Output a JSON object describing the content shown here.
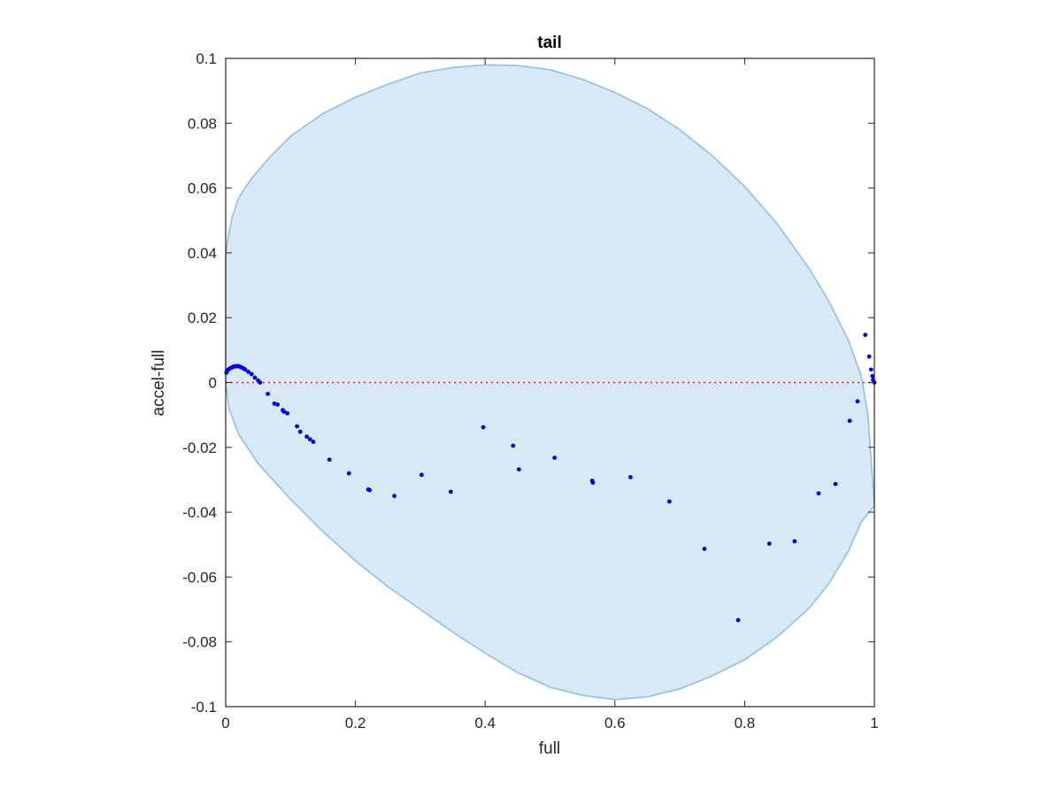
{
  "chart_data": {
    "type": "scatter",
    "title": "tail",
    "xlabel": "full",
    "ylabel": "accel-full",
    "xlim": [
      0,
      1
    ],
    "ylim": [
      -0.1,
      0.1
    ],
    "xticks": [
      0,
      0.2,
      0.4,
      0.6,
      0.8,
      1
    ],
    "xtick_labels": [
      "0",
      "0.2",
      "0.4",
      "0.6",
      "0.8",
      "1"
    ],
    "yticks": [
      0.1,
      0.08,
      0.06,
      0.04,
      0.02,
      0,
      -0.02,
      -0.04,
      -0.06,
      -0.08,
      -0.1
    ],
    "ytick_labels": [
      "0.1",
      "0.08",
      "0.06",
      "0.04",
      "0.02",
      "0",
      "-0.02",
      "-0.04",
      "-0.06",
      "-0.08",
      "-0.1"
    ],
    "grid": false,
    "colors": {
      "region_fill": "#d8e8f4",
      "region_edge": "#8ec1e3",
      "points": "#0000e6",
      "reference_line": "#e52222",
      "axes": "#262626"
    },
    "region": {
      "upper": [
        [
          0,
          0.038
        ],
        [
          0.002,
          0.043
        ],
        [
          0.01,
          0.051
        ],
        [
          0.02,
          0.057
        ],
        [
          0.04,
          0.063
        ],
        [
          0.07,
          0.07
        ],
        [
          0.1,
          0.076
        ],
        [
          0.15,
          0.083
        ],
        [
          0.2,
          0.088
        ],
        [
          0.25,
          0.092
        ],
        [
          0.3,
          0.0955
        ],
        [
          0.35,
          0.0972
        ],
        [
          0.4,
          0.098
        ],
        [
          0.45,
          0.0978
        ],
        [
          0.5,
          0.0965
        ],
        [
          0.55,
          0.0935
        ],
        [
          0.6,
          0.0895
        ],
        [
          0.65,
          0.0845
        ],
        [
          0.7,
          0.078
        ],
        [
          0.75,
          0.07
        ],
        [
          0.8,
          0.0605
        ],
        [
          0.85,
          0.049
        ],
        [
          0.9,
          0.035
        ],
        [
          0.93,
          0.025
        ],
        [
          0.96,
          0.013
        ],
        [
          0.98,
          0.002
        ],
        [
          0.99,
          -0.01
        ],
        [
          1.0,
          -0.038
        ]
      ],
      "lower": [
        [
          0,
          0.0
        ],
        [
          0.005,
          -0.008
        ],
        [
          0.02,
          -0.016
        ],
        [
          0.05,
          -0.025
        ],
        [
          0.1,
          -0.036
        ],
        [
          0.15,
          -0.046
        ],
        [
          0.2,
          -0.055
        ],
        [
          0.25,
          -0.063
        ],
        [
          0.3,
          -0.07
        ],
        [
          0.35,
          -0.077
        ],
        [
          0.4,
          -0.0835
        ],
        [
          0.45,
          -0.0895
        ],
        [
          0.5,
          -0.094
        ],
        [
          0.55,
          -0.0965
        ],
        [
          0.6,
          -0.0978
        ],
        [
          0.65,
          -0.097
        ],
        [
          0.7,
          -0.0945
        ],
        [
          0.75,
          -0.0905
        ],
        [
          0.8,
          -0.0855
        ],
        [
          0.85,
          -0.0785
        ],
        [
          0.9,
          -0.0695
        ],
        [
          0.93,
          -0.062
        ],
        [
          0.96,
          -0.052
        ],
        [
          0.98,
          -0.043
        ],
        [
          1.0,
          -0.038
        ]
      ]
    },
    "reference_line_y": 0,
    "points": [
      [
        0.001,
        0.003
      ],
      [
        0.002,
        0.0035
      ],
      [
        0.004,
        0.004
      ],
      [
        0.006,
        0.0043
      ],
      [
        0.008,
        0.0045
      ],
      [
        0.01,
        0.0047
      ],
      [
        0.012,
        0.0049
      ],
      [
        0.014,
        0.005
      ],
      [
        0.016,
        0.005
      ],
      [
        0.018,
        0.0051
      ],
      [
        0.02,
        0.005
      ],
      [
        0.022,
        0.0049
      ],
      [
        0.025,
        0.0046
      ],
      [
        0.028,
        0.0043
      ],
      [
        0.03,
        0.004
      ],
      [
        0.035,
        0.0033
      ],
      [
        0.04,
        0.0026
      ],
      [
        0.045,
        0.0015
      ],
      [
        0.05,
        0.0006
      ],
      [
        0.053,
        0.0
      ],
      [
        0.065,
        -0.0035
      ],
      [
        0.075,
        -0.0065
      ],
      [
        0.08,
        -0.0068
      ],
      [
        0.088,
        -0.0085
      ],
      [
        0.09,
        -0.009
      ],
      [
        0.095,
        -0.0095
      ],
      [
        0.11,
        -0.0135
      ],
      [
        0.115,
        -0.0152
      ],
      [
        0.125,
        -0.0167
      ],
      [
        0.13,
        -0.0175
      ],
      [
        0.135,
        -0.0183
      ],
      [
        0.16,
        -0.0238
      ],
      [
        0.19,
        -0.028
      ],
      [
        0.22,
        -0.033
      ],
      [
        0.222,
        -0.0332
      ],
      [
        0.26,
        -0.035
      ],
      [
        0.302,
        -0.0285
      ],
      [
        0.347,
        -0.0337
      ],
      [
        0.397,
        -0.0138
      ],
      [
        0.443,
        -0.0195
      ],
      [
        0.452,
        -0.0268
      ],
      [
        0.507,
        -0.0232
      ],
      [
        0.565,
        -0.0303
      ],
      [
        0.566,
        -0.0309
      ],
      [
        0.624,
        -0.0292
      ],
      [
        0.684,
        -0.0367
      ],
      [
        0.738,
        -0.0513
      ],
      [
        0.79,
        -0.0733
      ],
      [
        0.838,
        -0.0497
      ],
      [
        0.877,
        -0.049
      ],
      [
        0.914,
        -0.0342
      ],
      [
        0.94,
        -0.0313
      ],
      [
        0.962,
        -0.0118
      ],
      [
        0.974,
        -0.0058
      ],
      [
        0.986,
        0.0147
      ],
      [
        0.992,
        0.008
      ],
      [
        0.995,
        0.004
      ],
      [
        0.997,
        0.002
      ],
      [
        0.998,
        0.0008
      ],
      [
        1.0,
        0.0
      ]
    ]
  }
}
